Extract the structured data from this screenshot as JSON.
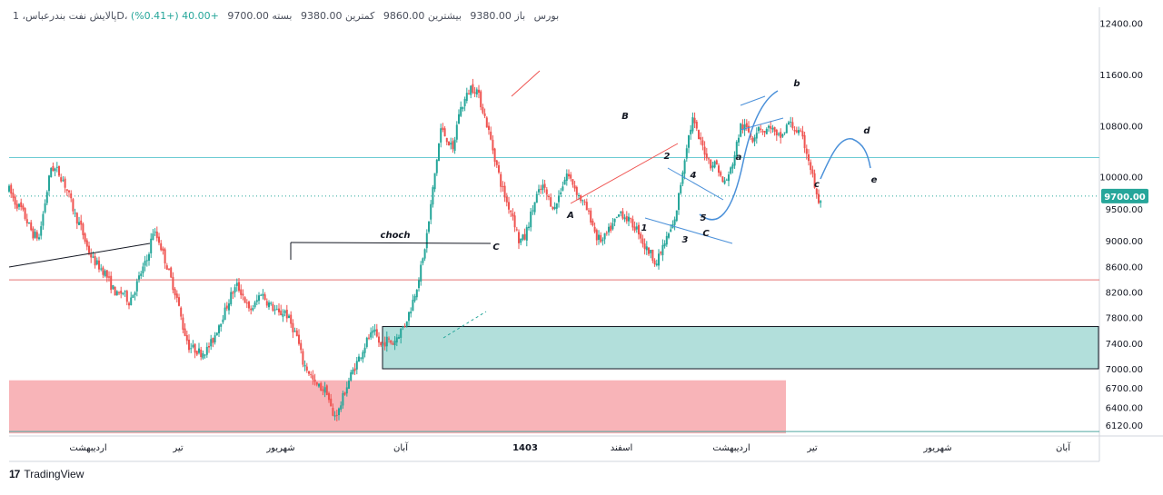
{
  "legend": {
    "symbol": "پالایش نفت بندرعباس، 1D، بورس",
    "open": "باز 9380.00",
    "high": "بیشترین 9860.00",
    "low": "کمترین 9380.00",
    "close": "بسته 9700.00",
    "change": "+40.00 (+0.41%)"
  },
  "branding": {
    "logo_text": "TradingView",
    "logo_mark": "17"
  },
  "colors": {
    "up": "#26a69a",
    "down": "#ef5350",
    "grid": "#f0f3fa",
    "demand_zone": "#b2dfdb",
    "supply_zone": "#f8b4b8",
    "hline_cyan": "#6ccbd3",
    "hline_red": "#e57373",
    "price_tag": "#26a69a",
    "wave_blue": "#4a90d9",
    "trend_red": "#ef5350"
  },
  "chart_data": {
    "type": "candlestick",
    "title": "پالایش نفت بندرعباس، 1D، بورس",
    "ylim": [
      5950,
      12650
    ],
    "y_ticks": [
      12400,
      11600,
      10800,
      10000,
      9500,
      9000,
      8600,
      8200,
      7800,
      7400,
      7000,
      6700,
      6400,
      6120
    ],
    "y_tick_labels": [
      "12400.00",
      "11600.00",
      "10800.00",
      "10000.00",
      "9500.00",
      "9000.00",
      "8600.00",
      "8200.00",
      "7800.00",
      "7400.00",
      "7000.00",
      "6700.00",
      "6400.00",
      "6120.00"
    ],
    "x_ticks": [
      "اردیبهشت",
      "تیر",
      "شهریور",
      "آبان",
      "1403",
      "اسفند",
      "اردیبهشت",
      "تیر",
      "شهریور",
      "آبان"
    ],
    "last_price": 9700,
    "last_price_label": "9700.00",
    "grid": true,
    "candle_path": [
      [
        0,
        9800
      ],
      [
        6,
        9600
      ],
      [
        12,
        9500
      ],
      [
        18,
        9300
      ],
      [
        24,
        9100
      ],
      [
        30,
        9050
      ],
      [
        36,
        9600
      ],
      [
        42,
        10150
      ],
      [
        48,
        10100
      ],
      [
        54,
        9950
      ],
      [
        60,
        9700
      ],
      [
        66,
        9400
      ],
      [
        72,
        9200
      ],
      [
        78,
        8900
      ],
      [
        84,
        8700
      ],
      [
        90,
        8600
      ],
      [
        96,
        8500
      ],
      [
        102,
        8300
      ],
      [
        108,
        8150
      ],
      [
        114,
        8200
      ],
      [
        120,
        8050
      ],
      [
        126,
        8250
      ],
      [
        132,
        8500
      ],
      [
        138,
        8700
      ],
      [
        144,
        9150
      ],
      [
        150,
        9000
      ],
      [
        156,
        8700
      ],
      [
        162,
        8400
      ],
      [
        168,
        8100
      ],
      [
        174,
        7650
      ],
      [
        180,
        7350
      ],
      [
        186,
        7300
      ],
      [
        192,
        7250
      ],
      [
        198,
        7300
      ],
      [
        204,
        7450
      ],
      [
        210,
        7700
      ],
      [
        216,
        7900
      ],
      [
        222,
        8150
      ],
      [
        228,
        8300
      ],
      [
        234,
        8150
      ],
      [
        240,
        7900
      ],
      [
        246,
        8000
      ],
      [
        252,
        8200
      ],
      [
        258,
        8050
      ],
      [
        264,
        7950
      ],
      [
        270,
        7850
      ],
      [
        276,
        7900
      ],
      [
        282,
        7700
      ],
      [
        288,
        7500
      ],
      [
        294,
        7100
      ],
      [
        300,
        6950
      ],
      [
        306,
        6750
      ],
      [
        312,
        6700
      ],
      [
        318,
        6650
      ],
      [
        324,
        6250
      ],
      [
        330,
        6350
      ],
      [
        336,
        6650
      ],
      [
        342,
        6900
      ],
      [
        348,
        7100
      ],
      [
        354,
        7300
      ],
      [
        360,
        7500
      ],
      [
        366,
        7550
      ],
      [
        372,
        7350
      ],
      [
        378,
        7450
      ],
      [
        384,
        7400
      ],
      [
        390,
        7550
      ],
      [
        396,
        7700
      ],
      [
        402,
        7950
      ],
      [
        408,
        8300
      ],
      [
        414,
        8700
      ],
      [
        420,
        9300
      ],
      [
        426,
        10050
      ],
      [
        432,
        10750
      ],
      [
        438,
        10600
      ],
      [
        444,
        10400
      ],
      [
        450,
        11000
      ],
      [
        456,
        11200
      ],
      [
        462,
        11400
      ],
      [
        468,
        11350
      ],
      [
        474,
        11050
      ],
      [
        480,
        10700
      ],
      [
        486,
        10300
      ],
      [
        492,
        9900
      ],
      [
        498,
        9600
      ],
      [
        504,
        9400
      ],
      [
        510,
        9000
      ],
      [
        516,
        9050
      ],
      [
        522,
        9400
      ],
      [
        528,
        9700
      ],
      [
        534,
        9850
      ],
      [
        540,
        9650
      ],
      [
        546,
        9500
      ],
      [
        552,
        9800
      ],
      [
        558,
        10050
      ],
      [
        564,
        9900
      ],
      [
        570,
        9700
      ],
      [
        576,
        9550
      ],
      [
        582,
        9350
      ],
      [
        588,
        9050
      ],
      [
        594,
        9000
      ],
      [
        600,
        9150
      ],
      [
        606,
        9300
      ],
      [
        612,
        9450
      ],
      [
        618,
        9350
      ],
      [
        624,
        9250
      ],
      [
        630,
        9150
      ],
      [
        636,
        8900
      ],
      [
        642,
        8800
      ],
      [
        648,
        8650
      ],
      [
        654,
        8900
      ],
      [
        660,
        9100
      ],
      [
        666,
        9300
      ],
      [
        672,
        9900
      ],
      [
        678,
        10500
      ],
      [
        684,
        10900
      ],
      [
        690,
        10600
      ],
      [
        696,
        10400
      ],
      [
        702,
        10200
      ],
      [
        708,
        10200
      ],
      [
        714,
        9900
      ],
      [
        720,
        10000
      ],
      [
        726,
        10350
      ],
      [
        732,
        10800
      ],
      [
        738,
        10750
      ],
      [
        744,
        10600
      ],
      [
        750,
        10800
      ],
      [
        756,
        10700
      ],
      [
        762,
        10800
      ],
      [
        768,
        10600
      ],
      [
        774,
        10650
      ],
      [
        780,
        10850
      ],
      [
        786,
        10750
      ],
      [
        792,
        10650
      ],
      [
        798,
        10400
      ],
      [
        804,
        10000
      ],
      [
        810,
        9550
      ],
      [
        813,
        9700
      ]
    ]
  },
  "annotations": {
    "labels": [
      {
        "key": "choch",
        "text": "choch"
      },
      {
        "key": "C1",
        "text": "C"
      },
      {
        "key": "A",
        "text": "A"
      },
      {
        "key": "B",
        "text": "B"
      },
      {
        "key": "w1",
        "text": "1"
      },
      {
        "key": "w2",
        "text": "2"
      },
      {
        "key": "w3",
        "text": "3"
      },
      {
        "key": "w4",
        "text": "4"
      },
      {
        "key": "w5",
        "text": "5"
      },
      {
        "key": "C2",
        "text": "C"
      },
      {
        "key": "a",
        "text": "a"
      },
      {
        "key": "b",
        "text": "b"
      },
      {
        "key": "c",
        "text": "c"
      },
      {
        "key": "d",
        "text": "d"
      },
      {
        "key": "e",
        "text": "e"
      }
    ]
  }
}
